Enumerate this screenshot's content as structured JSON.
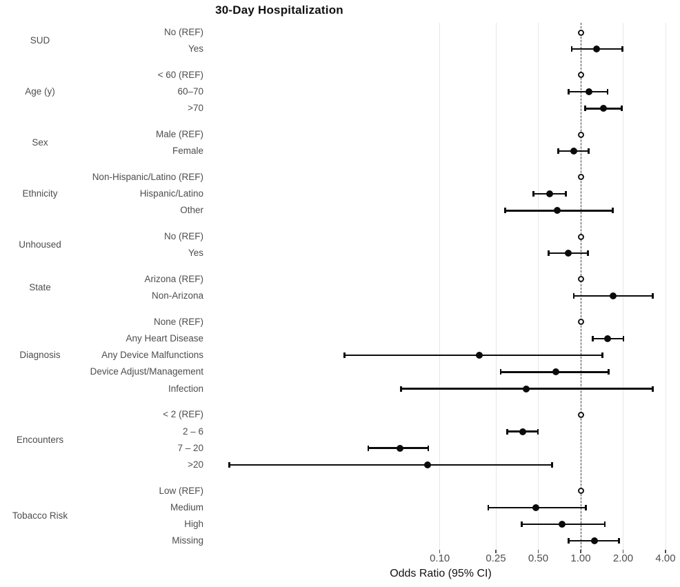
{
  "chart_data": {
    "type": "scatter",
    "subtype": "forest-plot",
    "title": "30-Day Hospitalization",
    "xlabel": "Odds Ratio (95% CI)",
    "x_scale": "log",
    "x_ticks": [
      0.1,
      0.25,
      0.5,
      1.0,
      2.0,
      4.0
    ],
    "x_tick_labels": [
      "0.10",
      "0.25",
      "0.50",
      "1.00",
      "2.00",
      "4.00"
    ],
    "reference_line": 1.0,
    "grid": "on",
    "marker_legend": {
      "reference_level": "open circle at OR 1.0",
      "estimate": "filled circle with 95% CI bar"
    },
    "groups": [
      {
        "label": "SUD",
        "rows": [
          {
            "label": "No (REF)",
            "ref": true,
            "or": 1.0
          },
          {
            "label": "Yes",
            "or": 1.3,
            "ci": [
              0.86,
              1.98
            ]
          }
        ]
      },
      {
        "label": "Age (y)",
        "rows": [
          {
            "label": "< 60 (REF)",
            "ref": true,
            "or": 1.0
          },
          {
            "label": "60–70",
            "or": 1.15,
            "ci": [
              0.82,
              1.56
            ]
          },
          {
            "label": ">70",
            "or": 1.45,
            "ci": [
              1.07,
              1.96
            ]
          }
        ]
      },
      {
        "label": "Sex",
        "rows": [
          {
            "label": "Male (REF)",
            "ref": true,
            "or": 1.0
          },
          {
            "label": "Female",
            "or": 0.89,
            "ci": [
              0.69,
              1.14
            ]
          }
        ]
      },
      {
        "label": "Ethnicity",
        "rows": [
          {
            "label": "Non-Hispanic/Latino (REF)",
            "ref": true,
            "or": 1.0
          },
          {
            "label": "Hispanic/Latino",
            "or": 0.6,
            "ci": [
              0.46,
              0.79
            ]
          },
          {
            "label": "Other",
            "or": 0.68,
            "ci": [
              0.29,
              1.7
            ]
          }
        ]
      },
      {
        "label": "Unhoused",
        "rows": [
          {
            "label": "No (REF)",
            "ref": true,
            "or": 1.0
          },
          {
            "label": "Yes",
            "or": 0.82,
            "ci": [
              0.59,
              1.13
            ]
          }
        ]
      },
      {
        "label": "State",
        "rows": [
          {
            "label": "Arizona (REF)",
            "ref": true,
            "or": 1.0
          },
          {
            "label": "Non-Arizona",
            "or": 1.7,
            "ci": [
              0.89,
              3.26
            ]
          }
        ]
      },
      {
        "label": "Diagnosis",
        "rows": [
          {
            "label": "None (REF)",
            "ref": true,
            "or": 1.0
          },
          {
            "label": "Any Heart Disease",
            "or": 1.56,
            "ci": [
              1.21,
              2.02
            ]
          },
          {
            "label": "Any Device Malfunctions",
            "or": 0.19,
            "ci": [
              0.021,
              1.43
            ]
          },
          {
            "label": "Device Adjust/Management",
            "or": 0.67,
            "ci": [
              0.27,
              1.58
            ]
          },
          {
            "label": "Infection",
            "or": 0.41,
            "ci": [
              0.053,
              3.25
            ]
          }
        ]
      },
      {
        "label": "Encounters",
        "rows": [
          {
            "label": "< 2 (REF)",
            "ref": true,
            "or": 1.0
          },
          {
            "label": "2 – 6",
            "or": 0.39,
            "ci": [
              0.3,
              0.5
            ]
          },
          {
            "label": "7 – 20",
            "or": 0.052,
            "ci": [
              0.031,
              0.083
            ]
          },
          {
            "label": ">20",
            "or": 0.082,
            "ci": [
              0.0032,
              0.63
            ]
          }
        ]
      },
      {
        "label": "Tobacco Risk",
        "rows": [
          {
            "label": "Low (REF)",
            "ref": true,
            "or": 1.0
          },
          {
            "label": "Medium",
            "or": 0.48,
            "ci": [
              0.22,
              1.09
            ]
          },
          {
            "label": "High",
            "or": 0.74,
            "ci": [
              0.38,
              1.49
            ]
          },
          {
            "label": "Missing",
            "or": 1.25,
            "ci": [
              0.82,
              1.87
            ]
          }
        ]
      }
    ]
  },
  "colors": {
    "background": "#ffffff",
    "point": "#0b0b0b",
    "ci_line": "#0b0b0b",
    "gridline": "#e7e7e7",
    "reference_dash": "#3a3a3a",
    "label_text": "#4d4d4d",
    "title_text": "#111111"
  }
}
